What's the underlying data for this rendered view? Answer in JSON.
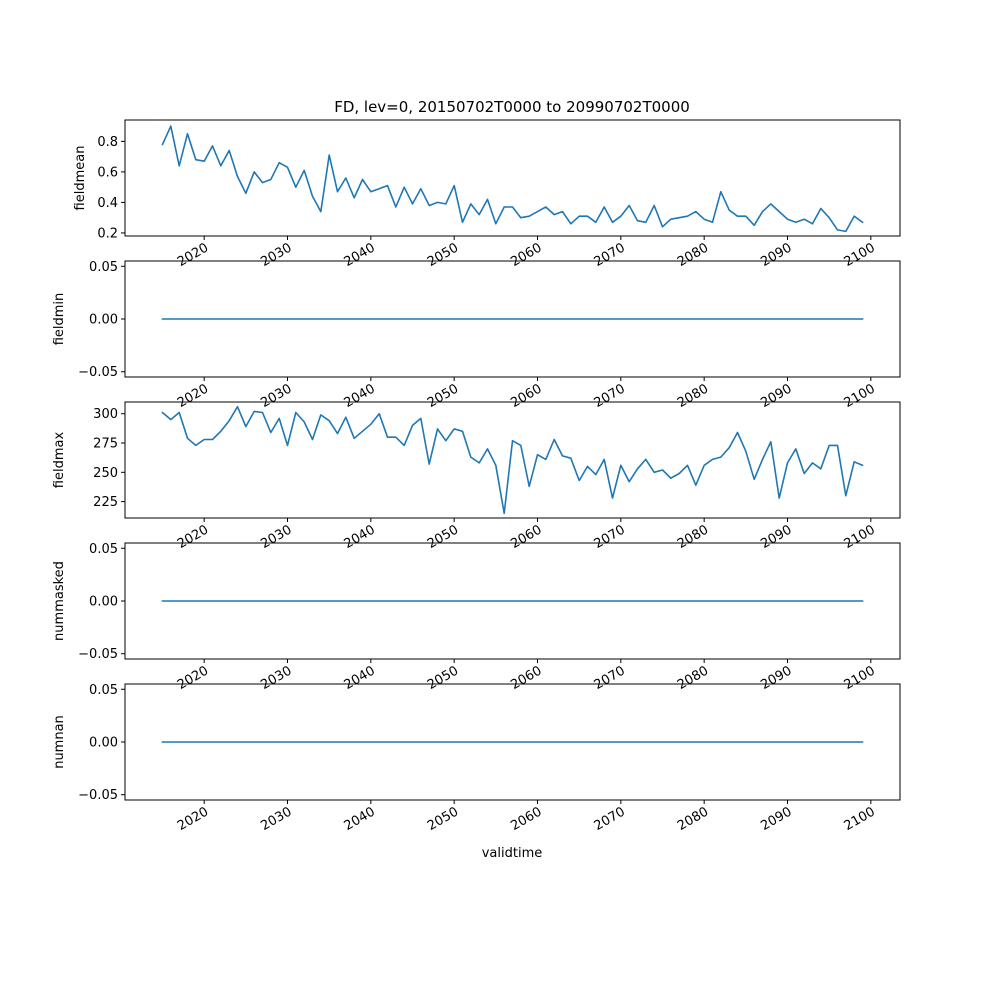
{
  "chart_data": {
    "type": "line",
    "title": "FD, lev=0, 20150702T0000 to 20990702T0000",
    "xlabel": "validtime",
    "x_start_year": 2015,
    "x_end_year": 2099,
    "xlim": [
      2010.5,
      2103.5
    ],
    "xticks": [
      "2020",
      "2030",
      "2040",
      "2050",
      "2060",
      "2070",
      "2080",
      "2090",
      "2100"
    ],
    "line_color": "#1f77b4",
    "subplots": [
      {
        "name": "fieldmean",
        "ylabel": "fieldmean",
        "ylim": [
          0.18,
          0.94
        ],
        "yticks": [
          "0.2",
          "0.4",
          "0.6",
          "0.8"
        ],
        "values": [
          0.78,
          0.9,
          0.64,
          0.85,
          0.68,
          0.67,
          0.77,
          0.64,
          0.74,
          0.57,
          0.46,
          0.6,
          0.53,
          0.55,
          0.66,
          0.63,
          0.5,
          0.61,
          0.44,
          0.34,
          0.71,
          0.47,
          0.56,
          0.43,
          0.55,
          0.47,
          0.49,
          0.51,
          0.37,
          0.5,
          0.39,
          0.49,
          0.38,
          0.4,
          0.39,
          0.51,
          0.27,
          0.39,
          0.32,
          0.42,
          0.26,
          0.37,
          0.37,
          0.3,
          0.31,
          0.34,
          0.37,
          0.32,
          0.34,
          0.26,
          0.31,
          0.31,
          0.27,
          0.37,
          0.27,
          0.31,
          0.38,
          0.28,
          0.27,
          0.38,
          0.24,
          0.29,
          0.3,
          0.31,
          0.34,
          0.29,
          0.27,
          0.47,
          0.35,
          0.31,
          0.31,
          0.25,
          0.34,
          0.39,
          0.34,
          0.29,
          0.27,
          0.29,
          0.26,
          0.36,
          0.3,
          0.22,
          0.21,
          0.31,
          0.27
        ]
      },
      {
        "name": "fieldmin",
        "ylabel": "fieldmin",
        "ylim": [
          -0.055,
          0.055
        ],
        "yticks": [
          "−0.05",
          "0.00",
          "0.05"
        ],
        "constant": 0
      },
      {
        "name": "fieldmax",
        "ylabel": "fieldmax",
        "ylim": [
          211,
          310
        ],
        "yticks": [
          "225",
          "250",
          "275",
          "300"
        ],
        "values": [
          301,
          295,
          301,
          279,
          273,
          278,
          278,
          285,
          294,
          306,
          289,
          302,
          301,
          284,
          296,
          273,
          301,
          293,
          278,
          299,
          294,
          283,
          297,
          279,
          285,
          291,
          300,
          280,
          280,
          273,
          290,
          296,
          257,
          287,
          277,
          287,
          285,
          263,
          258,
          270,
          256,
          215,
          277,
          273,
          238,
          265,
          261,
          278,
          264,
          262,
          243,
          255,
          248,
          261,
          228,
          256,
          242,
          253,
          261,
          250,
          252,
          245,
          249,
          256,
          239,
          256,
          261,
          263,
          271,
          284,
          268,
          244,
          261,
          276,
          228,
          258,
          270,
          249,
          258,
          253,
          273,
          273,
          230,
          259,
          256
        ]
      },
      {
        "name": "nummasked",
        "ylabel": "nummasked",
        "ylim": [
          -0.055,
          0.055
        ],
        "yticks": [
          "−0.05",
          "0.00",
          "0.05"
        ],
        "constant": 0
      },
      {
        "name": "numnan",
        "ylabel": "numnan",
        "ylim": [
          -0.055,
          0.055
        ],
        "yticks": [
          "−0.05",
          "0.00",
          "0.05"
        ],
        "constant": 0
      }
    ]
  }
}
